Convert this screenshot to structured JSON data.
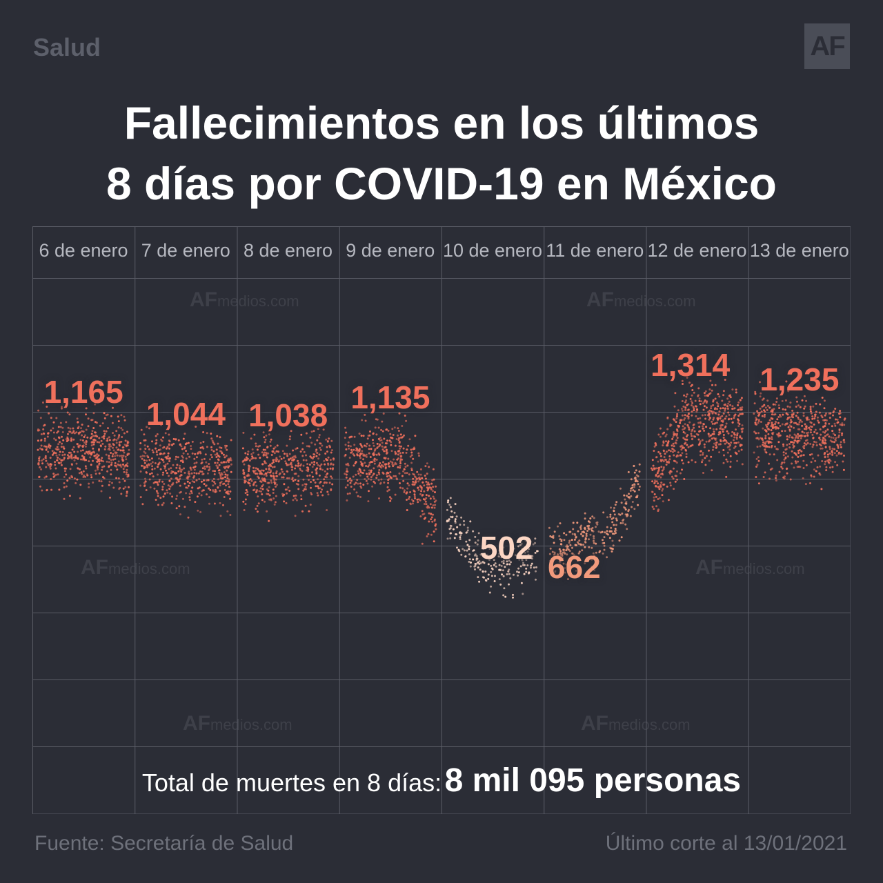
{
  "header": {
    "section": "Salud",
    "logo_text": "AF",
    "title_line1": "Fallecimientos en los últimos",
    "title_line2": "8 días por COVID-19 en México"
  },
  "watermark": {
    "brand": "AF",
    "site": "medios.com"
  },
  "chart_data": {
    "type": "scatter",
    "title": "Fallecimientos en los últimos 8 días por COVID-19 en México",
    "categories": [
      "6 de enero",
      "7 de enero",
      "8 de enero",
      "9 de enero",
      "10 de enero",
      "11 de enero",
      "12 de enero",
      "13 de enero"
    ],
    "values": [
      1165,
      1044,
      1038,
      1135,
      502,
      662,
      1314,
      1235
    ],
    "value_labels": [
      "1,165",
      "1,044",
      "1,038",
      "1,135",
      "502",
      "662",
      "1,314",
      "1,235"
    ],
    "colors": {
      "high": "#f0705c",
      "mid": "#f29a7c",
      "low": "#fcd6c4",
      "grid": "#5a5c66"
    },
    "grid": true,
    "legend": "none"
  },
  "footer": {
    "total_label": "Total de muertes en 8 días:",
    "total_value": "8 mil 095 personas",
    "source": "Fuente: Secretaría de Salud",
    "cutoff": "Último corte al 13/01/2021"
  }
}
